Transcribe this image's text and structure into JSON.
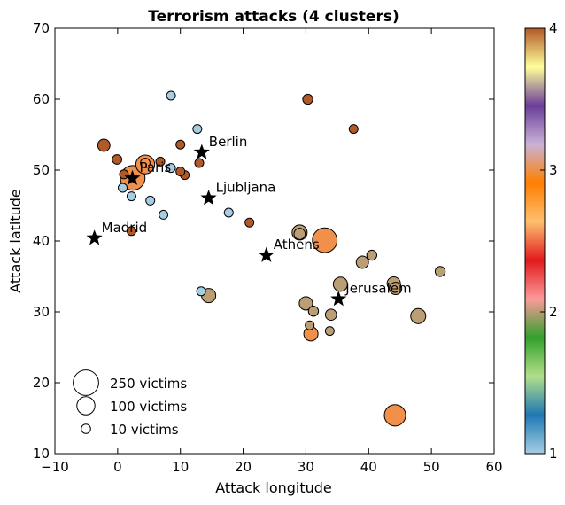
{
  "chart_data": {
    "type": "scatter",
    "title": "Terrorism attacks (4 clusters)",
    "xlabel": "Attack longitude",
    "ylabel": "Attack latitude",
    "xlim": [
      -10,
      60
    ],
    "ylim": [
      10,
      70
    ],
    "xticks": [
      -10,
      0,
      10,
      20,
      30,
      40,
      50,
      60
    ],
    "yticks": [
      10,
      20,
      30,
      40,
      50,
      60,
      70
    ],
    "grid": false,
    "colorbar": {
      "min": 1,
      "max": 4,
      "ticks": [
        1,
        2,
        3,
        4
      ],
      "stops": [
        "#a6cee3",
        "#1f78b4",
        "#b2df8a",
        "#33a02c",
        "#fb9a99",
        "#e31a1c",
        "#fdbf6f",
        "#ff7f00",
        "#cab2d6",
        "#6a3d9a",
        "#ffff99",
        "#b15928"
      ]
    },
    "cluster_colors": {
      "1": "#a6cee3",
      "2": "#bb9e74",
      "3": "#f0904a",
      "4": "#b15928"
    },
    "points": [
      {
        "lon": 8.5,
        "lat": 60.5,
        "victims": 5,
        "cluster": 1
      },
      {
        "lon": 12.7,
        "lat": 55.8,
        "victims": 6,
        "cluster": 1
      },
      {
        "lon": 8.5,
        "lat": 50.3,
        "victims": 5,
        "cluster": 1
      },
      {
        "lon": 0.8,
        "lat": 47.5,
        "victims": 6,
        "cluster": 1
      },
      {
        "lon": 2.2,
        "lat": 46.3,
        "victims": 5,
        "cluster": 1
      },
      {
        "lon": 5.2,
        "lat": 45.7,
        "victims": 5,
        "cluster": 1
      },
      {
        "lon": 7.3,
        "lat": 43.7,
        "victims": 5,
        "cluster": 1
      },
      {
        "lon": 17.7,
        "lat": 44.0,
        "victims": 5,
        "cluster": 1
      },
      {
        "lon": 13.3,
        "lat": 32.9,
        "victims": 8,
        "cluster": 1
      },
      {
        "lon": 14.5,
        "lat": 32.3,
        "victims": 40,
        "cluster": 2
      },
      {
        "lon": 29.0,
        "lat": 41.2,
        "victims": 45,
        "cluster": 2
      },
      {
        "lon": 29.0,
        "lat": 41.0,
        "victims": 25,
        "cluster": 2
      },
      {
        "lon": 35.5,
        "lat": 33.9,
        "victims": 40,
        "cluster": 2
      },
      {
        "lon": 39.0,
        "lat": 37.0,
        "victims": 30,
        "cluster": 2
      },
      {
        "lon": 40.5,
        "lat": 38.0,
        "victims": 20,
        "cluster": 2
      },
      {
        "lon": 44.0,
        "lat": 34.0,
        "victims": 35,
        "cluster": 2
      },
      {
        "lon": 44.3,
        "lat": 33.3,
        "victims": 30,
        "cluster": 2
      },
      {
        "lon": 51.4,
        "lat": 35.7,
        "victims": 20,
        "cluster": 2
      },
      {
        "lon": 47.9,
        "lat": 29.4,
        "victims": 45,
        "cluster": 2
      },
      {
        "lon": 30.0,
        "lat": 31.2,
        "victims": 35,
        "cluster": 2
      },
      {
        "lon": 31.2,
        "lat": 30.1,
        "victims": 20,
        "cluster": 2
      },
      {
        "lon": 34.0,
        "lat": 29.6,
        "victims": 25,
        "cluster": 2
      },
      {
        "lon": 30.6,
        "lat": 28.1,
        "victims": 15,
        "cluster": 2
      },
      {
        "lon": 33.8,
        "lat": 27.3,
        "victims": 8,
        "cluster": 2
      },
      {
        "lon": 33.0,
        "lat": 40.1,
        "victims": 120,
        "cluster": 3
      },
      {
        "lon": 30.8,
        "lat": 26.9,
        "victims": 40,
        "cluster": 3
      },
      {
        "lon": 44.2,
        "lat": 15.4,
        "victims": 90,
        "cluster": 3
      },
      {
        "lon": 2.4,
        "lat": 48.9,
        "victims": 120,
        "cluster": 3
      },
      {
        "lon": 4.4,
        "lat": 50.8,
        "victims": 70,
        "cluster": 3
      },
      {
        "lon": 4.4,
        "lat": 51.0,
        "victims": 18,
        "cluster": 3
      },
      {
        "lon": -2.2,
        "lat": 53.5,
        "victims": 30,
        "cluster": 4
      },
      {
        "lon": -0.1,
        "lat": 51.5,
        "victims": 18,
        "cluster": 4
      },
      {
        "lon": 1.0,
        "lat": 49.4,
        "victims": 12,
        "cluster": 4
      },
      {
        "lon": 6.8,
        "lat": 51.2,
        "victims": 6,
        "cluster": 4
      },
      {
        "lon": 10.0,
        "lat": 53.6,
        "victims": 8,
        "cluster": 4
      },
      {
        "lon": 10.0,
        "lat": 49.8,
        "victims": 8,
        "cluster": 4
      },
      {
        "lon": 10.7,
        "lat": 49.3,
        "victims": 10,
        "cluster": 4
      },
      {
        "lon": 13.0,
        "lat": 51.0,
        "victims": 6,
        "cluster": 4
      },
      {
        "lon": 21.0,
        "lat": 42.6,
        "victims": 5,
        "cluster": 4
      },
      {
        "lon": 2.2,
        "lat": 41.4,
        "victims": 5,
        "cluster": 4
      },
      {
        "lon": 30.3,
        "lat": 60.0,
        "victims": 20,
        "cluster": 4
      },
      {
        "lon": 37.6,
        "lat": 55.8,
        "victims": 6,
        "cluster": 4
      }
    ],
    "cities": [
      {
        "name": "Berlin",
        "lon": 13.4,
        "lat": 52.5
      },
      {
        "name": "Paris",
        "lon": 2.35,
        "lat": 48.85
      },
      {
        "name": "Ljubljana",
        "lon": 14.5,
        "lat": 46.05
      },
      {
        "name": "Madrid",
        "lon": -3.7,
        "lat": 40.4
      },
      {
        "name": "Athens",
        "lon": 23.7,
        "lat": 37.98
      },
      {
        "name": "Jerusalem",
        "lon": 35.2,
        "lat": 31.8
      }
    ],
    "size_legend": [
      {
        "label": "250 victims",
        "victims": 250
      },
      {
        "label": "100 victims",
        "victims": 100
      },
      {
        "label": "10 victims",
        "victims": 10
      }
    ]
  }
}
